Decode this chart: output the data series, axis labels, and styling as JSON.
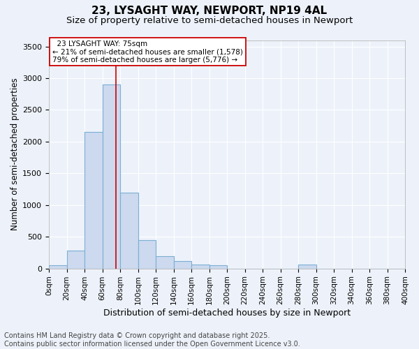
{
  "title1": "23, LYSAGHT WAY, NEWPORT, NP19 4AL",
  "title2": "Size of property relative to semi-detached houses in Newport",
  "xlabel": "Distribution of semi-detached houses by size in Newport",
  "ylabel": "Number of semi-detached properties",
  "property_size": 75,
  "annotation_line1": "23 LYSAGHT WAY: 75sqm",
  "annotation_line2": "← 21% of semi-detached houses are smaller (1,578)",
  "annotation_line3": "79% of semi-detached houses are larger (5,776) →",
  "footer_line1": "Contains HM Land Registry data © Crown copyright and database right 2025.",
  "footer_line2": "Contains public sector information licensed under the Open Government Licence v3.0.",
  "bin_edges": [
    0,
    20,
    40,
    60,
    80,
    100,
    120,
    140,
    160,
    180,
    200,
    220,
    240,
    260,
    280,
    300,
    320,
    340,
    360,
    380,
    400
  ],
  "bar_heights": [
    55,
    280,
    2150,
    2900,
    1200,
    450,
    200,
    115,
    65,
    55,
    0,
    0,
    0,
    0,
    60,
    0,
    0,
    0,
    0,
    0
  ],
  "bar_color": "#ccd9ee",
  "bar_edge_color": "#7bafd4",
  "bar_linewidth": 0.8,
  "vline_color": "#cc0000",
  "vline_x": 75,
  "box_edge_color": "#cc0000",
  "ylim": [
    0,
    3600
  ],
  "yticks": [
    0,
    500,
    1000,
    1500,
    2000,
    2500,
    3000,
    3500
  ],
  "background_color": "#edf2fa",
  "axes_bg_color": "#edf2fa",
  "grid_color": "#ffffff",
  "title1_fontsize": 11,
  "title2_fontsize": 9.5,
  "xlabel_fontsize": 9,
  "ylabel_fontsize": 8.5,
  "annotation_fontsize": 7.5,
  "footer_fontsize": 7,
  "tick_fontsize": 7.5,
  "ytick_fontsize": 8
}
